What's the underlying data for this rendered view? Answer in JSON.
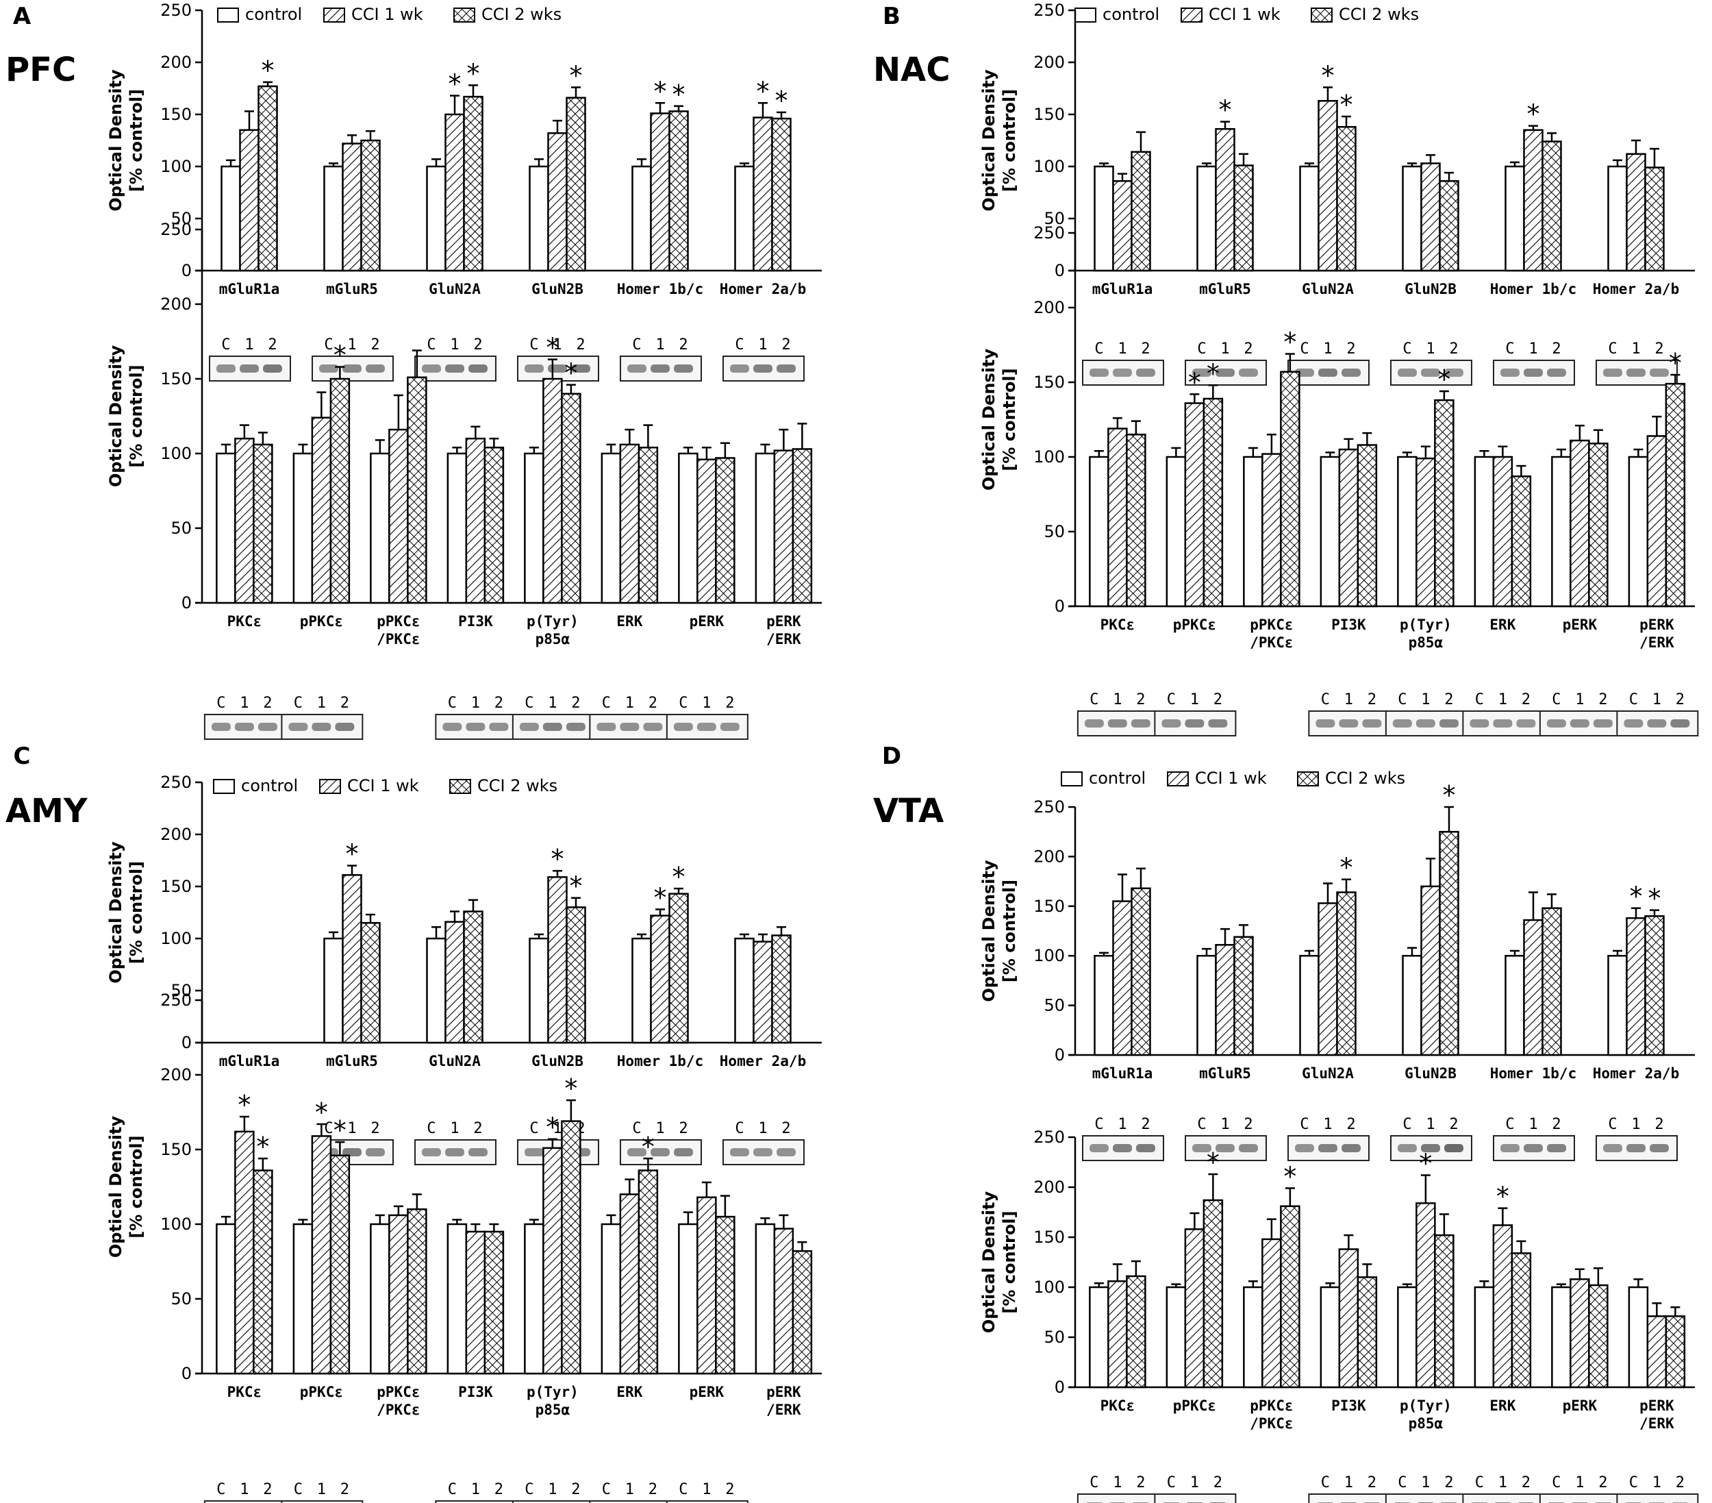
{
  "figure": {
    "legend_labels": [
      "control",
      "CCI 1 wk",
      "CCI 2 wks"
    ],
    "y_label_line1": "Optical Density",
    "y_label_line2": "[% control]",
    "blot_lane_labels": [
      "C",
      "1",
      "2"
    ],
    "y_ticks": [
      "0",
      "50",
      "100",
      "150",
      "200",
      "250"
    ]
  },
  "chart_data": [
    {
      "panel": "A",
      "region": "PFC",
      "subplot": "top",
      "type": "bar",
      "ylim": [
        0,
        250
      ],
      "ylabel": "Optical Density [% control]",
      "categories": [
        "mGluR1a",
        "mGluR5",
        "GluN2A",
        "GluN2B",
        "Homer 1b/c",
        "Homer 2a/b"
      ],
      "series": [
        {
          "name": "control",
          "values": [
            100,
            100,
            100,
            100,
            100,
            100
          ],
          "err": [
            6,
            3,
            7,
            7,
            7,
            3
          ]
        },
        {
          "name": "CCI 1 wk",
          "values": [
            135,
            122,
            150,
            132,
            151,
            147
          ],
          "err": [
            18,
            8,
            18,
            12,
            10,
            14
          ]
        },
        {
          "name": "CCI 2 wks",
          "values": [
            177,
            125,
            167,
            166,
            153,
            146
          ],
          "err": [
            4,
            9,
            11,
            10,
            5,
            6
          ]
        }
      ],
      "stars": [
        [
          2
        ],
        [],
        [
          1,
          2
        ],
        [
          2
        ],
        [
          1,
          2
        ],
        [
          1,
          2
        ]
      ],
      "blots": [
        0,
        1,
        2,
        3,
        4,
        5
      ]
    },
    {
      "panel": "A",
      "region": "PFC",
      "subplot": "bottom",
      "type": "bar",
      "ylim": [
        0,
        250
      ],
      "ylabel": "Optical Density [% control]",
      "categories": [
        "PKCε",
        "pPKCε",
        "pPKCε\n/PKCε",
        "PI3K",
        "p(Tyr)\np85α",
        "ERK",
        "pERK",
        "pERK\n/ERK"
      ],
      "series": [
        {
          "name": "control",
          "values": [
            100,
            100,
            100,
            100,
            100,
            100,
            100,
            100
          ],
          "err": [
            6,
            6,
            9,
            4,
            4,
            6,
            4,
            6
          ]
        },
        {
          "name": "CCI 1 wk",
          "values": [
            110,
            124,
            116,
            110,
            150,
            106,
            96,
            102
          ],
          "err": [
            9,
            17,
            23,
            8,
            13,
            10,
            8,
            14
          ]
        },
        {
          "name": "CCI 2 wks",
          "values": [
            106,
            150,
            151,
            104,
            140,
            104,
            97,
            103
          ],
          "err": [
            8,
            8,
            18,
            6,
            6,
            15,
            10,
            17
          ]
        }
      ],
      "stars": [
        [],
        [
          2
        ],
        [],
        [],
        [
          1,
          2
        ],
        [],
        [],
        []
      ],
      "blots": [
        0,
        1,
        3,
        4,
        5,
        6
      ]
    },
    {
      "panel": "B",
      "region": "NAC",
      "subplot": "top",
      "type": "bar",
      "ylim": [
        0,
        250
      ],
      "ylabel": "Optical Density [% control]",
      "categories": [
        "mGluR1a",
        "mGluR5",
        "GluN2A",
        "GluN2B",
        "Homer 1b/c",
        "Homer 2a/b"
      ],
      "series": [
        {
          "name": "control",
          "values": [
            100,
            100,
            100,
            100,
            100,
            100
          ],
          "err": [
            3,
            3,
            3,
            3,
            4,
            6
          ]
        },
        {
          "name": "CCI 1 wk",
          "values": [
            86,
            136,
            163,
            103,
            135,
            112
          ],
          "err": [
            7,
            7,
            13,
            8,
            4,
            13
          ]
        },
        {
          "name": "CCI 2 wks",
          "values": [
            114,
            101,
            138,
            86,
            124,
            99
          ],
          "err": [
            19,
            11,
            10,
            8,
            8,
            18
          ]
        }
      ],
      "stars": [
        [],
        [
          1
        ],
        [
          1,
          2
        ],
        [],
        [
          1
        ],
        []
      ],
      "blots": [
        0,
        1,
        2,
        3,
        4,
        5
      ]
    },
    {
      "panel": "B",
      "region": "NAC",
      "subplot": "bottom",
      "type": "bar",
      "ylim": [
        0,
        250
      ],
      "ylabel": "Optical Density [% control]",
      "categories": [
        "PKCε",
        "pPKCε",
        "pPKCε\n/PKCε",
        "PI3K",
        "p(Tyr)\np85α",
        "ERK",
        "pERK",
        "pERK\n/ERK"
      ],
      "series": [
        {
          "name": "control",
          "values": [
            100,
            100,
            100,
            100,
            100,
            100,
            100,
            100
          ],
          "err": [
            4,
            6,
            6,
            3,
            3,
            4,
            5,
            5
          ]
        },
        {
          "name": "CCI 1 wk",
          "values": [
            119,
            136,
            102,
            105,
            99,
            100,
            111,
            114
          ],
          "err": [
            7,
            6,
            13,
            7,
            8,
            7,
            10,
            13
          ]
        },
        {
          "name": "CCI 2 wks",
          "values": [
            115,
            139,
            157,
            108,
            138,
            87,
            109,
            149
          ],
          "err": [
            9,
            9,
            12,
            8,
            6,
            7,
            9,
            6
          ]
        }
      ],
      "stars": [
        [],
        [
          1,
          2
        ],
        [
          2
        ],
        [],
        [
          2
        ],
        [],
        [],
        [
          2
        ]
      ],
      "blots": [
        0,
        1,
        3,
        4,
        5,
        6,
        7
      ]
    },
    {
      "panel": "C",
      "region": "AMY",
      "subplot": "top",
      "type": "bar",
      "ylim": [
        0,
        250
      ],
      "ylabel": "Optical Density [% control]",
      "categories": [
        "mGluR1a",
        "mGluR5",
        "GluN2A",
        "GluN2B",
        "Homer 1b/c",
        "Homer 2a/b"
      ],
      "series": [
        {
          "name": "control",
          "values": [
            null,
            100,
            100,
            100,
            100,
            100
          ],
          "err": [
            null,
            6,
            11,
            4,
            4,
            4
          ]
        },
        {
          "name": "CCI 1 wk",
          "values": [
            null,
            161,
            116,
            159,
            122,
            97
          ],
          "err": [
            null,
            9,
            10,
            6,
            6,
            7
          ]
        },
        {
          "name": "CCI 2 wks",
          "values": [
            null,
            115,
            126,
            130,
            143,
            103
          ],
          "err": [
            null,
            8,
            11,
            9,
            5,
            8
          ]
        }
      ],
      "stars": [
        [],
        [
          1
        ],
        [],
        [
          1,
          2
        ],
        [
          1,
          2
        ],
        []
      ],
      "blots": [
        1,
        2,
        3,
        4,
        5
      ]
    },
    {
      "panel": "C",
      "region": "AMY",
      "subplot": "bottom",
      "type": "bar",
      "ylim": [
        0,
        250
      ],
      "ylabel": "Optical Density [% control]",
      "categories": [
        "PKCε",
        "pPKCε",
        "pPKCε\n/PKCε",
        "PI3K",
        "p(Tyr)\np85α",
        "ERK",
        "pERK",
        "pERK\n/ERK"
      ],
      "series": [
        {
          "name": "control",
          "values": [
            100,
            100,
            100,
            100,
            100,
            100,
            100,
            100
          ],
          "err": [
            5,
            3,
            6,
            3,
            3,
            6,
            8,
            4
          ]
        },
        {
          "name": "CCI 1 wk",
          "values": [
            162,
            159,
            106,
            95,
            151,
            120,
            118,
            97
          ],
          "err": [
            10,
            8,
            6,
            5,
            6,
            10,
            10,
            9
          ]
        },
        {
          "name": "CCI 2 wks",
          "values": [
            136,
            146,
            110,
            95,
            169,
            136,
            105,
            82
          ],
          "err": [
            8,
            9,
            10,
            5,
            14,
            8,
            14,
            6
          ]
        }
      ],
      "stars": [
        [
          1,
          2
        ],
        [
          1,
          2
        ],
        [],
        [],
        [
          1,
          2
        ],
        [
          2
        ],
        [],
        []
      ],
      "blots": [
        0,
        1,
        3,
        4,
        5,
        6
      ]
    },
    {
      "panel": "D",
      "region": "VTA",
      "subplot": "top",
      "type": "bar",
      "ylim": [
        0,
        250
      ],
      "ylabel": "Optical Density [% control]",
      "categories": [
        "mGluR1a",
        "mGluR5",
        "GluN2A",
        "GluN2B",
        "Homer 1b/c",
        "Homer 2a/b"
      ],
      "series": [
        {
          "name": "control",
          "values": [
            100,
            100,
            100,
            100,
            100,
            100
          ],
          "err": [
            3,
            7,
            5,
            8,
            5,
            5
          ]
        },
        {
          "name": "CCI 1 wk",
          "values": [
            155,
            111,
            153,
            170,
            136,
            138
          ],
          "err": [
            27,
            16,
            20,
            28,
            28,
            10
          ]
        },
        {
          "name": "CCI 2 wks",
          "values": [
            168,
            119,
            164,
            225,
            148,
            140
          ],
          "err": [
            20,
            12,
            13,
            25,
            14,
            6
          ]
        }
      ],
      "stars": [
        [],
        [],
        [
          2
        ],
        [
          2
        ],
        [],
        [
          1,
          2
        ]
      ],
      "blots": [
        0,
        1,
        2,
        3,
        4,
        5
      ]
    },
    {
      "panel": "D",
      "region": "VTA",
      "subplot": "bottom",
      "type": "bar",
      "ylim": [
        0,
        250
      ],
      "ylabel": "Optical Density [% control]",
      "categories": [
        "PKCε",
        "pPKCε",
        "pPKCε\n/PKCε",
        "PI3K",
        "p(Tyr)\np85α",
        "ERK",
        "pERK",
        "pERK\n/ERK"
      ],
      "series": [
        {
          "name": "control",
          "values": [
            100,
            100,
            100,
            100,
            100,
            100,
            100,
            100
          ],
          "err": [
            4,
            3,
            6,
            4,
            3,
            6,
            3,
            8
          ]
        },
        {
          "name": "CCI 1 wk",
          "values": [
            106,
            158,
            148,
            138,
            184,
            162,
            108,
            71
          ],
          "err": [
            17,
            16,
            20,
            14,
            28,
            17,
            10,
            13
          ]
        },
        {
          "name": "CCI 2 wks",
          "values": [
            111,
            187,
            181,
            110,
            152,
            134,
            102,
            71
          ],
          "err": [
            15,
            26,
            18,
            13,
            21,
            12,
            17,
            9
          ]
        }
      ],
      "stars": [
        [],
        [
          2
        ],
        [
          2
        ],
        [],
        [
          1
        ],
        [
          1
        ],
        [],
        []
      ],
      "blots": [
        0,
        1,
        3,
        4,
        5,
        6,
        7
      ]
    }
  ]
}
